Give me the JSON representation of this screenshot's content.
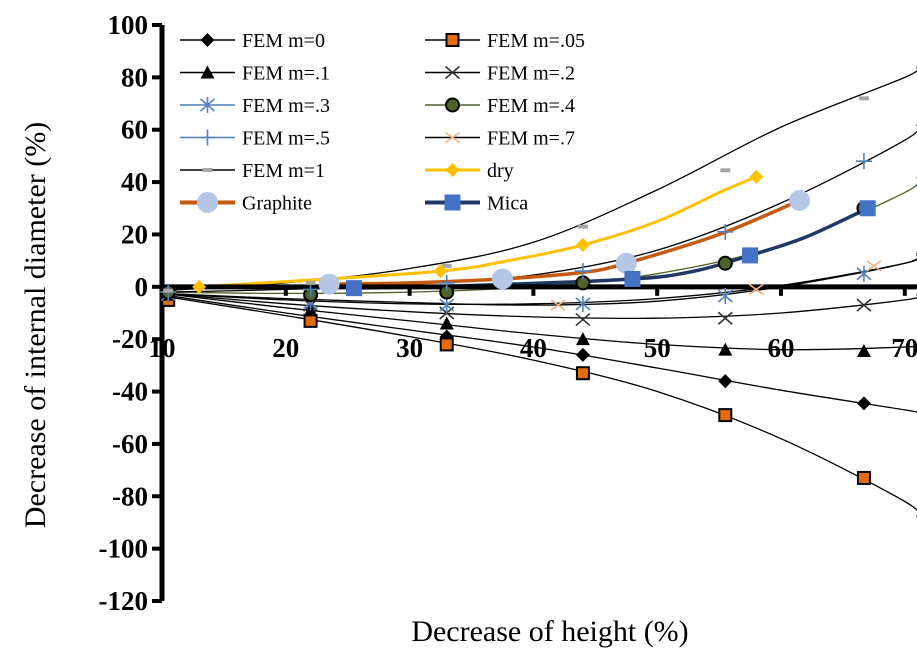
{
  "chart_data": {
    "type": "line",
    "xlabel": "Decrease of height (%)",
    "ylabel": "Decrease of internal diameter (%)",
    "xlim": [
      10,
      71
    ],
    "ylim": [
      -120,
      100
    ],
    "x_ticks": [
      10,
      20,
      30,
      40,
      50,
      60,
      70
    ],
    "x_tick_labels": [
      "10",
      "20",
      "30",
      "40",
      "50",
      "60",
      "70"
    ],
    "y_ticks": [
      100,
      80,
      60,
      40,
      20,
      0,
      -20,
      -40,
      -60,
      -80,
      -100,
      -120
    ],
    "y_tick_labels": [
      "100",
      "80",
      "60",
      "40",
      "20",
      "0",
      "-20",
      "-40",
      "-60",
      "-80",
      "-100",
      "-120"
    ],
    "legend_position": "top-left",
    "grid": false,
    "series": [
      {
        "name": "FEM m=0",
        "color": "#000000",
        "marker": "diamond",
        "x": [
          10.5,
          22,
          33,
          44,
          55.5,
          66.7
        ],
        "y": [
          -4,
          -12,
          -19,
          -26,
          -36,
          -44.5
        ],
        "curve_x": [
          10,
          20,
          30,
          40,
          50,
          60,
          70,
          71
        ],
        "curve_y": [
          -3,
          -10,
          -16.5,
          -23,
          -31,
          -39.5,
          -47,
          -48
        ]
      },
      {
        "name": "FEM m=.05",
        "color": "#000000",
        "marker": "square-orange",
        "x": [
          10.5,
          22,
          33,
          44,
          55.5,
          66.7
        ],
        "y": [
          -5,
          -13,
          -22,
          -33,
          -49,
          -73
        ],
        "curve_x": [
          10,
          20,
          30,
          40,
          50,
          60,
          70,
          71
        ],
        "curve_y": [
          -3.5,
          -11,
          -19,
          -28,
          -40,
          -58,
          -82,
          -88
        ]
      },
      {
        "name": "FEM m=.1",
        "color": "#000000",
        "marker": "triangle",
        "x": [
          10.5,
          22,
          33,
          44,
          55.5,
          66.7
        ],
        "y": [
          -3,
          -9,
          -14,
          -20,
          -24,
          -24.5
        ],
        "curve_x": [
          10,
          20,
          30,
          40,
          50,
          60,
          70,
          71
        ],
        "curve_y": [
          -2.5,
          -8,
          -13,
          -18,
          -22,
          -24,
          -23,
          -22
        ]
      },
      {
        "name": "FEM m=.2",
        "color": "#555555",
        "marker": "x",
        "x": [
          10.5,
          22,
          33,
          44,
          55.5,
          66.7
        ],
        "y": [
          -3,
          -7,
          -10,
          -12.5,
          -12,
          -7
        ],
        "curve_x": [
          10,
          20,
          30,
          40,
          50,
          60,
          70,
          71
        ],
        "curve_y": [
          -2.5,
          -6.5,
          -9.5,
          -11.5,
          -12,
          -10,
          -5,
          -3
        ]
      },
      {
        "name": "FEM m=.3",
        "color": "#4f81bd",
        "marker": "asterisk",
        "x": [
          10.5,
          22,
          33,
          44,
          55.5,
          66.7
        ],
        "y": [
          -3,
          -6,
          -7,
          -6.5,
          -3.5,
          5
        ],
        "curve_x": [
          10,
          20,
          30,
          40,
          50,
          60,
          70,
          71
        ],
        "curve_y": [
          -2.5,
          -5,
          -6.5,
          -6.5,
          -4.5,
          0.5,
          9,
          12
        ]
      },
      {
        "name": "FEM m=.4",
        "color": "#4f6228",
        "marker": "circle",
        "x": [
          10.5,
          22,
          33,
          44,
          55.5,
          66.7
        ],
        "y": [
          -2,
          -3,
          -2,
          1.5,
          9,
          30
        ],
        "curve_x": [
          10,
          20,
          30,
          40,
          50,
          60,
          70,
          71
        ],
        "curve_y": [
          -2,
          -2.5,
          -2,
          0,
          5,
          16,
          36,
          42
        ]
      },
      {
        "name": "FEM m=.5",
        "color": "#4f81bd",
        "marker": "plus",
        "x": [
          10.5,
          22,
          33,
          44,
          55.5,
          66.7
        ],
        "y": [
          -2,
          -1,
          1.5,
          6,
          21,
          48
        ],
        "curve_x": [
          10,
          20,
          30,
          40,
          50,
          60,
          70,
          71
        ],
        "curve_y": [
          -2,
          -1,
          1,
          4.5,
          14,
          32,
          56,
          62
        ]
      },
      {
        "name": "FEM m=.7",
        "color": "#f79646",
        "marker": "dash",
        "x": [
          42,
          58,
          67.5
        ],
        "y": [
          -7,
          -1,
          8
        ],
        "curve_x": [
          10,
          20,
          30,
          40,
          50,
          60,
          70,
          71
        ],
        "curve_y": [
          -2.5,
          -4.5,
          -6,
          -7,
          -5.5,
          0,
          9,
          13
        ]
      },
      {
        "name": "FEM m=1",
        "color": "#a6a6a6",
        "marker": "dash",
        "x": [
          10.5,
          22,
          33,
          44,
          55.5,
          66.7
        ],
        "y": [
          -1.5,
          1.5,
          8,
          23,
          44.5,
          72
        ],
        "curve_x": [
          10,
          20,
          30,
          40,
          50,
          60,
          70,
          71
        ],
        "curve_y": [
          -1.5,
          1.5,
          7,
          17,
          37,
          61,
          80,
          84
        ]
      },
      {
        "name": "dry",
        "color": "#ffc000",
        "marker": "diamond",
        "x": [
          13,
          32.5,
          44,
          58
        ],
        "y": [
          0,
          6,
          16,
          42
        ],
        "curve_x": [
          13,
          20,
          32.5,
          38,
          44,
          50,
          55,
          58
        ],
        "curve_y": [
          0,
          2,
          6,
          10,
          16,
          25,
          36,
          42
        ]
      },
      {
        "name": "Graphite",
        "color": "#c55a11",
        "marker": "big-circle",
        "x": [
          23.5,
          37.5,
          47.5,
          61.5
        ],
        "y": [
          1,
          3,
          9,
          33
        ],
        "curve_x": [
          23.5,
          30,
          37.5,
          44,
          47.5,
          55,
          61.5
        ],
        "curve_y": [
          1,
          1.5,
          3,
          5.5,
          9,
          20,
          33
        ]
      },
      {
        "name": "Mica",
        "color": "#1f3864",
        "marker": "square-blue",
        "x": [
          25.5,
          48,
          57.5,
          67
        ],
        "y": [
          -0.5,
          3,
          12,
          30
        ],
        "curve_x": [
          25.5,
          35,
          48,
          53,
          57.5,
          62,
          67
        ],
        "curve_y": [
          -0.5,
          0.5,
          3,
          6,
          12,
          19,
          30
        ]
      }
    ]
  }
}
